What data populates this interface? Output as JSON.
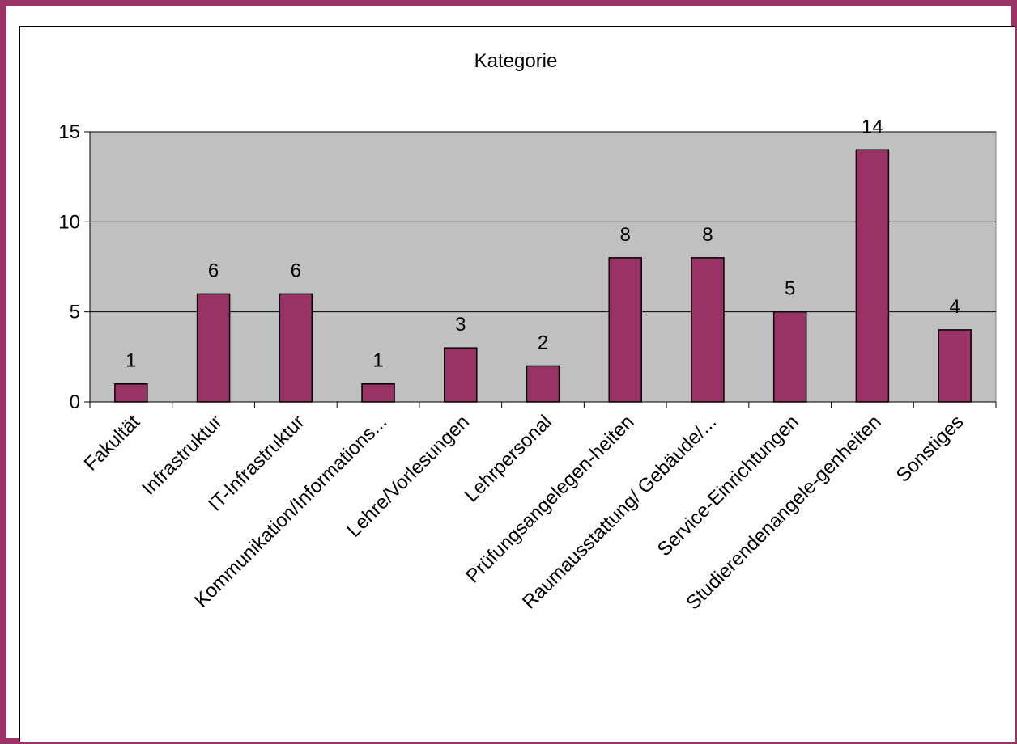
{
  "chart_data": {
    "type": "bar",
    "title": "Kategorie",
    "categories": [
      "Fakultät",
      "Infrastruktur",
      "IT-Infrastruktur",
      "Kommunikation/Informations...",
      "Lehre/Vorlesungen",
      "Lehrpersonal",
      "Prüfungsangelegen-heiten",
      "Raumausstattung/ Gebäude/...",
      "Service-Einrichtungen",
      "Studierendenangele-genheiten",
      "Sonstiges"
    ],
    "values": [
      1,
      6,
      6,
      1,
      3,
      2,
      8,
      8,
      5,
      14,
      4
    ],
    "xlabel": "",
    "ylabel": "",
    "ylim": [
      0,
      15
    ],
    "yticks": [
      0,
      5,
      10,
      15
    ],
    "grid": true,
    "legend": "none",
    "colors": {
      "bar": "#993366",
      "plot_background": "#c0c0c0",
      "frame": "#993366"
    }
  }
}
